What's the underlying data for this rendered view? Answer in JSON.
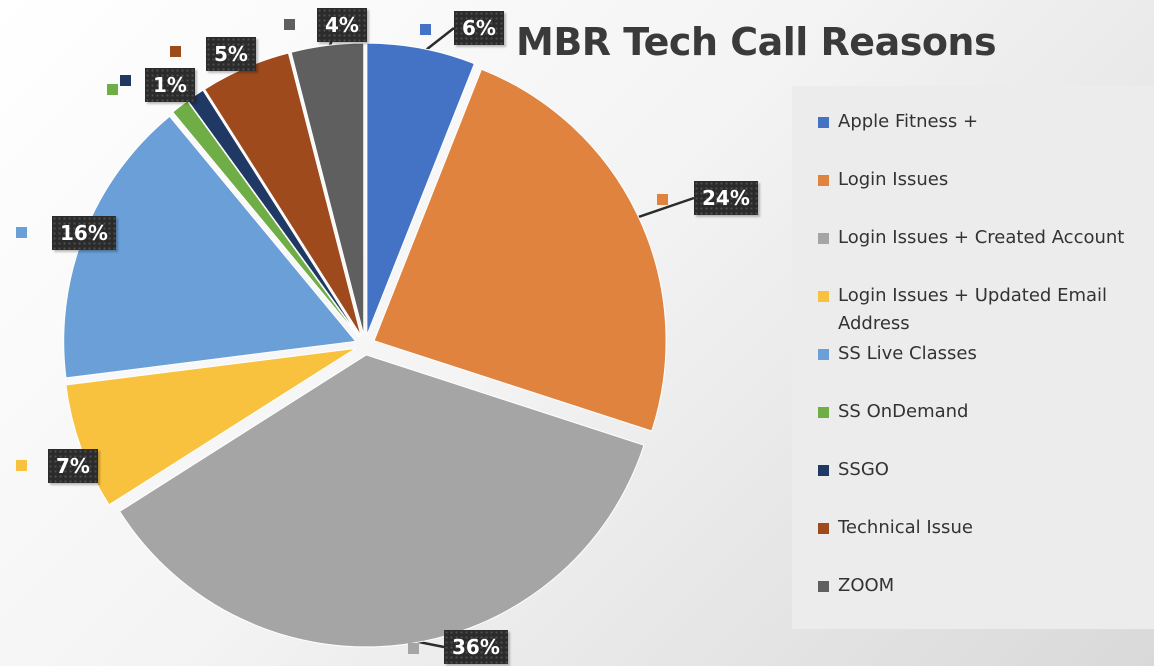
{
  "chart_data": {
    "type": "pie",
    "title": "MBR Tech Call Reasons",
    "legend_position": "right",
    "slices": [
      {
        "name": "Apple Fitness +",
        "value": 6,
        "label": "6%",
        "color": "#4472c4"
      },
      {
        "name": "Login Issues",
        "value": 24,
        "label": "24%",
        "color": "#e0833f"
      },
      {
        "name": "Login Issues + Created Account",
        "value": 36,
        "label": "36%",
        "color": "#a5a5a5"
      },
      {
        "name": "Login Issues + Updated Email Address",
        "value": 7,
        "label": "7%",
        "color": "#f8c23e"
      },
      {
        "name": "SS Live Classes",
        "value": 16,
        "label": "16%",
        "color": "#6a9fd8"
      },
      {
        "name": "SS OnDemand",
        "value": 1,
        "label": "",
        "color": "#6fad47"
      },
      {
        "name": "SSGO",
        "value": 1,
        "label": "1%",
        "color": "#203864"
      },
      {
        "name": "Technical Issue",
        "value": 5,
        "label": "5%",
        "color": "#9e4a1c"
      },
      {
        "name": "ZOOM",
        "value": 4,
        "label": "4%",
        "color": "#5f5f5f"
      }
    ]
  }
}
